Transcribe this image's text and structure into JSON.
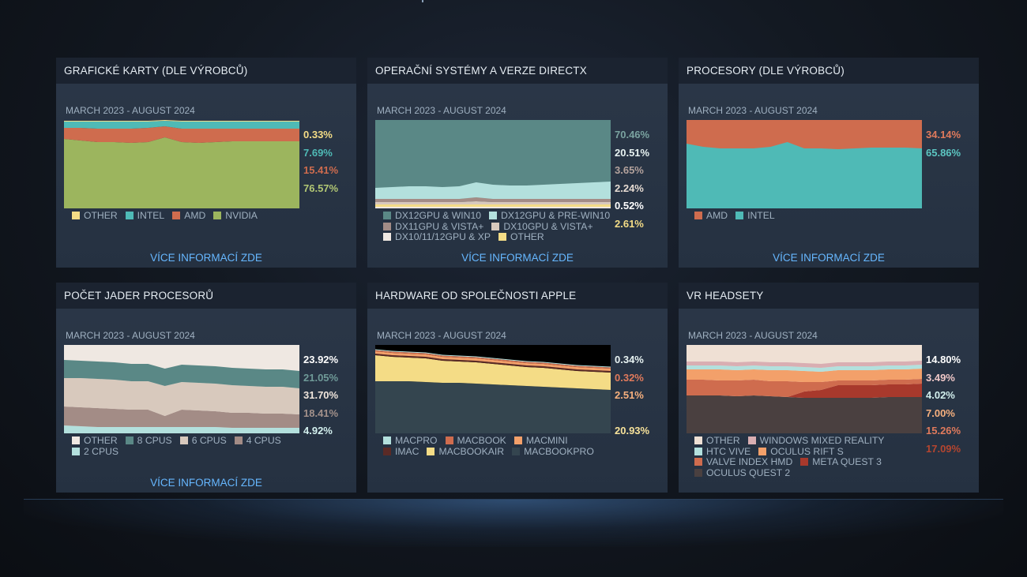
{
  "date_range": "MARCH 2023 - AUGUST 2024",
  "more_label": "VÍCE INFORMACÍ ZDE",
  "panels": [
    {
      "title": "GRAFICKÉ KARTY (DLE VÝROBCŮ)",
      "show_more": true,
      "legend": [
        {
          "label": "OTHER",
          "color": "#f4dc86"
        },
        {
          "label": "INTEL",
          "color": "#4fbab6"
        },
        {
          "label": "AMD",
          "color": "#cf6c4e"
        },
        {
          "label": "NVIDIA",
          "color": "#9cb55e"
        }
      ],
      "percents": [
        {
          "value": "0.33%",
          "color": "#f4dc86"
        },
        {
          "value": "7.69%",
          "color": "#4fbab6"
        },
        {
          "value": "15.41%",
          "color": "#cf6c4e"
        },
        {
          "value": "76.57%",
          "color": "#b2c774"
        }
      ]
    },
    {
      "title": "OPERAČNÍ SYSTÉMY A VERZE DIRECTX",
      "show_more": true,
      "legend": [
        {
          "label": "DX12GPU & WIN10",
          "color": "#5a8886"
        },
        {
          "label": "DX12GPU & PRE-WIN10",
          "color": "#b3e0dd"
        },
        {
          "label": "DX11GPU & VISTA+",
          "color": "#a38c86"
        },
        {
          "label": "DX10GPU & VISTA+",
          "color": "#d8c9bd"
        },
        {
          "label": "DX10/11/12GPU & XP",
          "color": "#efe8e2"
        },
        {
          "label": "OTHER",
          "color": "#f4dc86"
        }
      ],
      "percents": [
        {
          "value": "70.46%",
          "color": "#7aa3a0"
        },
        {
          "value": "20.51%",
          "color": "#e8f3f2"
        },
        {
          "value": "3.65%",
          "color": "#b4a29c"
        },
        {
          "value": "2.24%",
          "color": "#e6dbd2"
        },
        {
          "value": "0.52%",
          "color": "#ffffff"
        },
        {
          "value": "2.61%",
          "color": "#f4dc86"
        }
      ]
    },
    {
      "title": "PROCESORY (DLE VÝROBCŮ)",
      "show_more": true,
      "legend": [
        {
          "label": "AMD",
          "color": "#cf6c4e"
        },
        {
          "label": "INTEL",
          "color": "#4fbab6"
        }
      ],
      "percents": [
        {
          "value": "34.14%",
          "color": "#e07a5c"
        },
        {
          "value": "65.86%",
          "color": "#5cc6c2"
        }
      ]
    },
    {
      "title": "POČET JADER PROCESORŮ",
      "show_more": true,
      "legend": [
        {
          "label": "OTHER",
          "color": "#efe8e2"
        },
        {
          "label": "8 CPUS",
          "color": "#5a8886"
        },
        {
          "label": "6 CPUS",
          "color": "#d8c9bd"
        },
        {
          "label": "4 CPUS",
          "color": "#a38c86"
        },
        {
          "label": "2 CPUS",
          "color": "#b3e0dd"
        }
      ],
      "percents": [
        {
          "value": "23.92%",
          "color": "#ffffff"
        },
        {
          "value": "21.05%",
          "color": "#6f9a98"
        },
        {
          "value": "31.70%",
          "color": "#efe5dc"
        },
        {
          "value": "18.41%",
          "color": "#a3918b"
        },
        {
          "value": "4.92%",
          "color": "#d3f0ee"
        }
      ]
    },
    {
      "title": "HARDWARE OD SPOLEČNOSTI APPLE",
      "show_more": false,
      "legend": [
        {
          "label": "MACPRO",
          "color": "#b3e0dd"
        },
        {
          "label": "MACBOOK",
          "color": "#cf6c4e"
        },
        {
          "label": "MACMINI",
          "color": "#f3a06a"
        },
        {
          "label": "IMAC",
          "color": "#5a2a26"
        },
        {
          "label": "MACBOOKAIR",
          "color": "#f4dc86"
        },
        {
          "label": "MACBOOKPRO",
          "color": "#34454f"
        }
      ],
      "percents": [
        {
          "value": "0.34%",
          "color": "#e8f3f2"
        },
        {
          "value": "0.32%",
          "color": "#e07a5c"
        },
        {
          "value": "2.51%",
          "color": "#f7b07e"
        },
        {
          "value": "",
          "color": "#4a2b2a"
        },
        {
          "value": "20.93%",
          "color": "#f7e29a"
        },
        {
          "value": "",
          "color": "#34454f"
        }
      ]
    },
    {
      "title": "VR HEADSETY",
      "show_more": false,
      "legend": [
        {
          "label": "OTHER",
          "color": "#efe0d4"
        },
        {
          "label": "WINDOWS MIXED REALITY",
          "color": "#d9aeb2"
        },
        {
          "label": "HTC VIVE",
          "color": "#b3e0dd"
        },
        {
          "label": "OCULUS RIFT S",
          "color": "#f3a06a"
        },
        {
          "label": "VALVE INDEX HMD",
          "color": "#cf6c4e"
        },
        {
          "label": "META QUEST 3",
          "color": "#a8392c"
        },
        {
          "label": "OCULUS QUEST 2",
          "color": "#4a4040"
        }
      ],
      "percents": [
        {
          "value": "14.80%",
          "color": "#ffffff"
        },
        {
          "value": "3.49%",
          "color": "#f0c8c8"
        },
        {
          "value": "4.02%",
          "color": "#d3f0ee"
        },
        {
          "value": "7.00%",
          "color": "#f7b07e"
        },
        {
          "value": "15.26%",
          "color": "#e07a5c"
        },
        {
          "value": "17.09%",
          "color": "#b5452f"
        },
        {
          "value": "",
          "color": "#4a4040"
        }
      ]
    }
  ]
}
